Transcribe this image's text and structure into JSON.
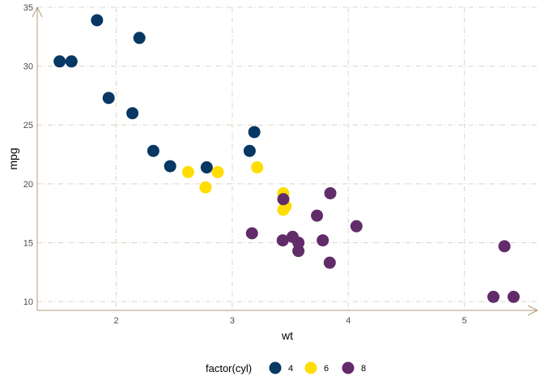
{
  "chart_data": {
    "type": "scatter",
    "xlabel": "wt",
    "ylabel": "mpg",
    "xlim": [
      1.32,
      5.63
    ],
    "ylim": [
      9.25,
      35.0
    ],
    "x_ticks": [
      2,
      3,
      4,
      5
    ],
    "y_ticks": [
      10,
      15,
      20,
      25,
      30,
      35
    ],
    "grid": true,
    "legend": {
      "title": "factor(cyl)",
      "placement": "bottom",
      "entries": [
        "4",
        "6",
        "8"
      ]
    },
    "series": [
      {
        "name": "4",
        "color": "#073763",
        "points": [
          {
            "x": 2.32,
            "y": 22.8
          },
          {
            "x": 3.19,
            "y": 24.4
          },
          {
            "x": 3.15,
            "y": 22.8
          },
          {
            "x": 2.2,
            "y": 32.4
          },
          {
            "x": 1.615,
            "y": 30.4
          },
          {
            "x": 1.835,
            "y": 33.9
          },
          {
            "x": 2.465,
            "y": 21.5
          },
          {
            "x": 1.935,
            "y": 27.3
          },
          {
            "x": 2.14,
            "y": 26.0
          },
          {
            "x": 1.513,
            "y": 30.4
          },
          {
            "x": 2.78,
            "y": 21.4
          }
        ]
      },
      {
        "name": "6",
        "color": "#FFDD00",
        "points": [
          {
            "x": 2.62,
            "y": 21.0
          },
          {
            "x": 2.875,
            "y": 21.0
          },
          {
            "x": 3.215,
            "y": 21.4
          },
          {
            "x": 3.46,
            "y": 18.1
          },
          {
            "x": 3.44,
            "y": 19.2
          },
          {
            "x": 3.44,
            "y": 17.8
          },
          {
            "x": 2.77,
            "y": 19.7
          }
        ]
      },
      {
        "name": "8",
        "color": "#612C69",
        "points": [
          {
            "x": 3.44,
            "y": 18.7
          },
          {
            "x": 3.57,
            "y": 14.3
          },
          {
            "x": 4.07,
            "y": 16.4
          },
          {
            "x": 3.73,
            "y": 17.3
          },
          {
            "x": 3.78,
            "y": 15.2
          },
          {
            "x": 5.25,
            "y": 10.4
          },
          {
            "x": 5.424,
            "y": 10.4
          },
          {
            "x": 5.345,
            "y": 14.7
          },
          {
            "x": 3.52,
            "y": 15.5
          },
          {
            "x": 3.435,
            "y": 15.2
          },
          {
            "x": 3.84,
            "y": 13.3
          },
          {
            "x": 3.845,
            "y": 19.2
          },
          {
            "x": 3.17,
            "y": 15.8
          },
          {
            "x": 3.57,
            "y": 15.0
          }
        ]
      }
    ]
  }
}
